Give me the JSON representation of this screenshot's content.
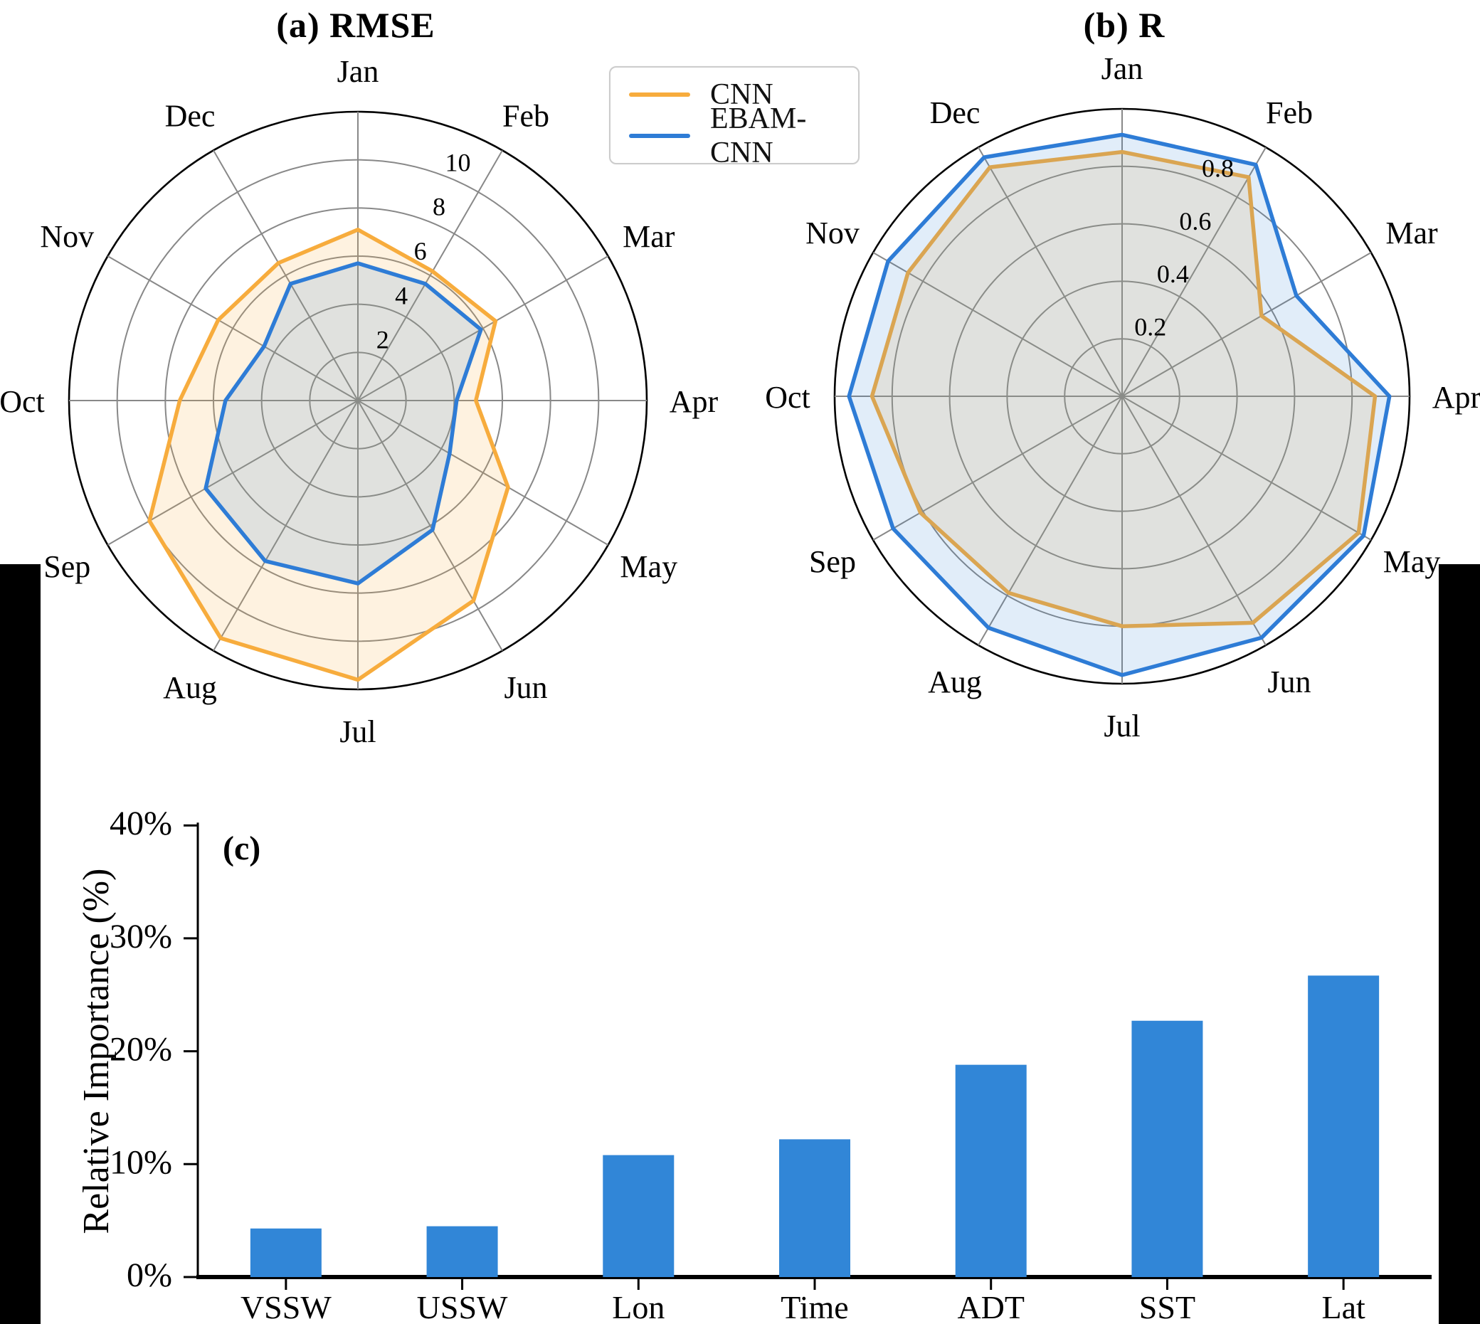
{
  "titles": {
    "panel_a": "(a) RMSE",
    "panel_b": "(b) R",
    "panel_c": "(c)"
  },
  "legend": {
    "items": [
      {
        "label": "CNN",
        "color": "#F7AC3D"
      },
      {
        "label": "EBAM-CNN",
        "color": "#2E7CD6"
      }
    ]
  },
  "colors": {
    "cnn_line": "#F7AC3D",
    "ebam_line": "#2E7CD6",
    "cnn_fill": "rgba(247,172,61,0.16)",
    "ebam_fill": "rgba(46,124,214,0.14)",
    "bar_fill": "#3186D7",
    "grid_gray": "#888888",
    "outer_circle": "#000000"
  },
  "chart_data": [
    {
      "type": "radar",
      "title": "(a) RMSE",
      "categories": [
        "Jan",
        "Feb",
        "Mar",
        "Apr",
        "May",
        "Jun",
        "Jul",
        "Aug",
        "Sep",
        "Oct",
        "Nov",
        "Dec"
      ],
      "series": [
        {
          "name": "CNN",
          "values": [
            7.1,
            6.2,
            6.6,
            4.9,
            7.2,
            9.6,
            11.6,
            11.4,
            10.0,
            7.4,
            6.7,
            6.6
          ]
        },
        {
          "name": "EBAM-CNN",
          "values": [
            5.7,
            5.6,
            5.9,
            4.1,
            4.4,
            6.2,
            7.6,
            7.7,
            7.3,
            5.5,
            4.5,
            5.6
          ]
        }
      ],
      "rtick_labels": [
        "2",
        "4",
        "6",
        "8",
        "10"
      ],
      "rmax": 12,
      "grid": true,
      "legend_position": "top-center"
    },
    {
      "type": "radar",
      "title": "(b) R",
      "categories": [
        "Jan",
        "Feb",
        "Mar",
        "Apr",
        "May",
        "Jun",
        "Jul",
        "Aug",
        "Sep",
        "Oct",
        "Nov",
        "Dec"
      ],
      "series": [
        {
          "name": "CNN",
          "values": [
            0.85,
            0.88,
            0.56,
            0.88,
            0.95,
            0.91,
            0.8,
            0.79,
            0.81,
            0.87,
            0.86,
            0.92
          ]
        },
        {
          "name": "EBAM-CNN",
          "values": [
            0.91,
            0.93,
            0.7,
            0.93,
            0.97,
            0.97,
            0.97,
            0.93,
            0.92,
            0.95,
            0.94,
            0.96
          ]
        }
      ],
      "rtick_labels": [
        "0.2",
        "0.4",
        "0.6",
        "0.8"
      ],
      "rmax": 1.0,
      "grid": true,
      "legend_position": "top-center"
    },
    {
      "type": "bar",
      "title": "(c)",
      "categories": [
        "VSSW",
        "USSW",
        "Lon",
        "Time",
        "ADT",
        "SST",
        "Lat"
      ],
      "values": [
        4.3,
        4.5,
        10.8,
        12.2,
        18.8,
        22.7,
        26.7
      ],
      "ylabel": "Relative Importance (%)",
      "xlabel": "",
      "ytick_values": [
        0,
        10,
        20,
        30,
        40
      ],
      "ytick_labels": [
        "0%",
        "10%",
        "20%",
        "30%",
        "40%"
      ],
      "ylim": [
        0,
        40
      ],
      "grid": false
    }
  ]
}
